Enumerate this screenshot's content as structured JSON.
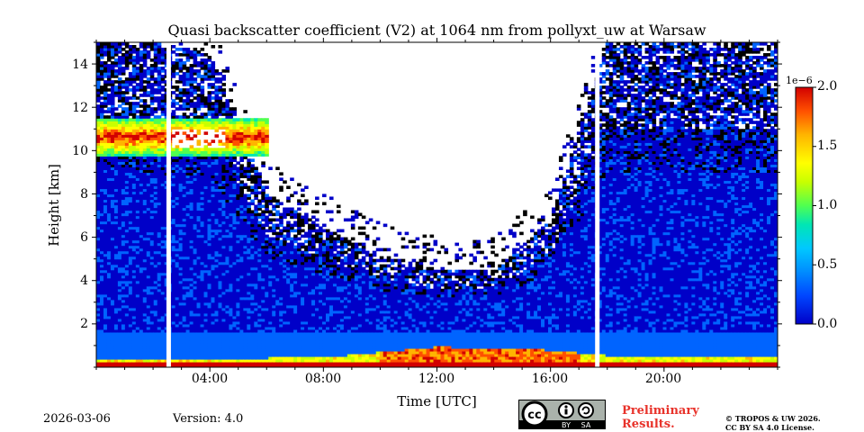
{
  "chart_data": {
    "type": "heatmap",
    "title": "Quasi backscatter coefficient (V2) at 1064 nm from pollyxt_uw at Warsaw",
    "xlabel": "Time [UTC]",
    "ylabel": "Height [km]",
    "xlim": [
      0,
      24
    ],
    "ylim": [
      0,
      15
    ],
    "x_ticks": [
      4,
      8,
      12,
      16,
      20
    ],
    "x_tick_labels": [
      "04:00",
      "08:00",
      "12:00",
      "16:00",
      "20:00"
    ],
    "y_ticks": [
      2,
      4,
      6,
      8,
      10,
      12,
      14
    ],
    "y_tick_labels": [
      "2",
      "4",
      "6",
      "8",
      "10",
      "12",
      "14"
    ],
    "colorbar": {
      "range": [
        0.0,
        2.0
      ],
      "exponent_label": "1e−6",
      "ticks": [
        0.0,
        0.5,
        1.0,
        1.5,
        2.0
      ],
      "tick_labels": [
        "0.0",
        "0.5",
        "1.0",
        "1.5",
        "2.0"
      ],
      "colors": [
        "#0000c8",
        "#0064ff",
        "#00c8ff",
        "#00e6b4",
        "#50ff50",
        "#c8ff00",
        "#ffff00",
        "#ffb400",
        "#ff5000",
        "#d20000"
      ]
    },
    "data_gaps_utc": [
      2.55,
      17.65
    ],
    "signal_top_km": {
      "times_utc": [
        0,
        2,
        4,
        6,
        8,
        10,
        12,
        14,
        16,
        18,
        20,
        22,
        24
      ],
      "heights": [
        15,
        15,
        14.5,
        8,
        6.5,
        5.2,
        4.5,
        4.5,
        6.8,
        15,
        15,
        15,
        15
      ]
    },
    "cirrus_layer": {
      "start_utc": 0,
      "end_utc": 6,
      "base_km": 9.8,
      "top_km": 11.5,
      "peak_value": 2.0
    },
    "boundary_layer": {
      "times_utc": [
        0,
        8,
        10,
        12,
        14,
        16,
        18,
        24
      ],
      "top_km": [
        0.4,
        0.45,
        0.7,
        0.95,
        0.9,
        0.8,
        0.55,
        0.45
      ]
    }
  },
  "footer": {
    "date": "2026-03-06",
    "version": "Version: 4.0",
    "preliminary_line1": "Preliminary",
    "preliminary_line2": "Results.",
    "copyright_line1": "© TROPOS & UW 2026.",
    "copyright_line2": "CC BY SA 4.0 License."
  },
  "license_badge": {
    "cc": "cc",
    "by": "BY",
    "sa": "SA"
  }
}
